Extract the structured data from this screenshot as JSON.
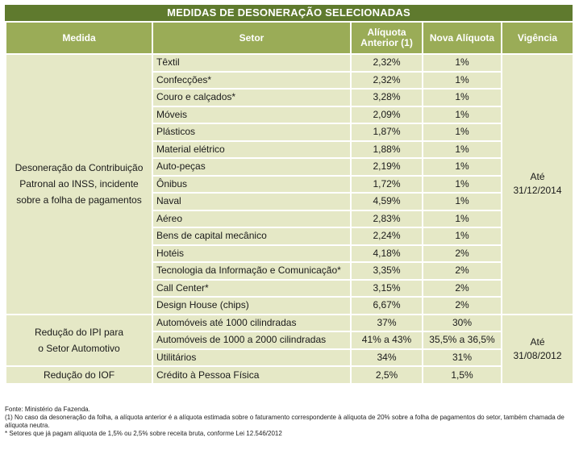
{
  "title": "MEDIDAS DE DESONERAÇÃO SELECIONADAS",
  "headers": {
    "medida": "Medida",
    "setor": "Setor",
    "aliquota_anterior_l1": "Alíquota",
    "aliquota_anterior_l2": "Anterior (1)",
    "nova_aliquota": "Nova Alíquota",
    "vigencia": "Vigência"
  },
  "groups": [
    {
      "medida_lines": [
        "Desoneração da Contribuição",
        "Patronal ao INSS, incidente",
        "sobre a folha de pagamentos"
      ],
      "vigencia_lines": [
        "Até",
        "31/12/2014"
      ],
      "rows": [
        {
          "setor": "Têxtil",
          "anterior": "2,32%",
          "nova": "1%"
        },
        {
          "setor": "Confecções*",
          "anterior": "2,32%",
          "nova": "1%"
        },
        {
          "setor": "Couro e calçados*",
          "anterior": "3,28%",
          "nova": "1%"
        },
        {
          "setor": "Móveis",
          "anterior": "2,09%",
          "nova": "1%"
        },
        {
          "setor": "Plásticos",
          "anterior": "1,87%",
          "nova": "1%"
        },
        {
          "setor": "Material elétrico",
          "anterior": "1,88%",
          "nova": "1%"
        },
        {
          "setor": "Auto-peças",
          "anterior": "2,19%",
          "nova": "1%"
        },
        {
          "setor": "Ônibus",
          "anterior": "1,72%",
          "nova": "1%"
        },
        {
          "setor": "Naval",
          "anterior": "4,59%",
          "nova": "1%"
        },
        {
          "setor": "Aéreo",
          "anterior": "2,83%",
          "nova": "1%"
        },
        {
          "setor": "Bens de capital mecânico",
          "anterior": "2,24%",
          "nova": "1%"
        },
        {
          "setor": "Hotéis",
          "anterior": "4,18%",
          "nova": "2%"
        },
        {
          "setor": "Tecnologia da Informação e Comunicação*",
          "anterior": "3,35%",
          "nova": "2%"
        },
        {
          "setor": "Call Center*",
          "anterior": "3,15%",
          "nova": "2%"
        },
        {
          "setor": "Design House (chips)",
          "anterior": "6,67%",
          "nova": "2%"
        }
      ]
    },
    {
      "medida_lines": [
        "Redução do IPI para",
        "o Setor Automotivo"
      ],
      "vigencia_lines": [
        "Até",
        "31/08/2012"
      ],
      "rows": [
        {
          "setor": "Automóveis até 1000 cilindradas",
          "anterior": "37%",
          "nova": "30%"
        },
        {
          "setor": "Automóveis de 1000 a 2000 cilindradas",
          "anterior": "41% a 43%",
          "nova": "35,5% a 36,5%"
        },
        {
          "setor": "Utilitários",
          "anterior": "34%",
          "nova": "31%"
        }
      ]
    },
    {
      "medida_lines": [
        "Redução do IOF"
      ],
      "rows": [
        {
          "setor": "Crédito à Pessoa Física",
          "anterior": "2,5%",
          "nova": "1,5%"
        }
      ]
    }
  ],
  "footnotes": {
    "fonte": "Fonte: Ministério da Fazenda.",
    "nota1": "(1) No caso da desoneração da folha, a alíquota anterior é a alíquota estimada sobre o faturamento correspondente à alíquota de 20% sobre a folha de pagamentos do setor, também chamada de alíquota neutra.",
    "nota2": "* Setores que já pagam alíquota de 1,5% ou 2,5% sobre receita bruta, conforme Lei 12.546/2012"
  },
  "colors": {
    "title_bg": "#5f7a2e",
    "header_bg": "#9aac57",
    "cell_bg": "#e5e8c6"
  }
}
